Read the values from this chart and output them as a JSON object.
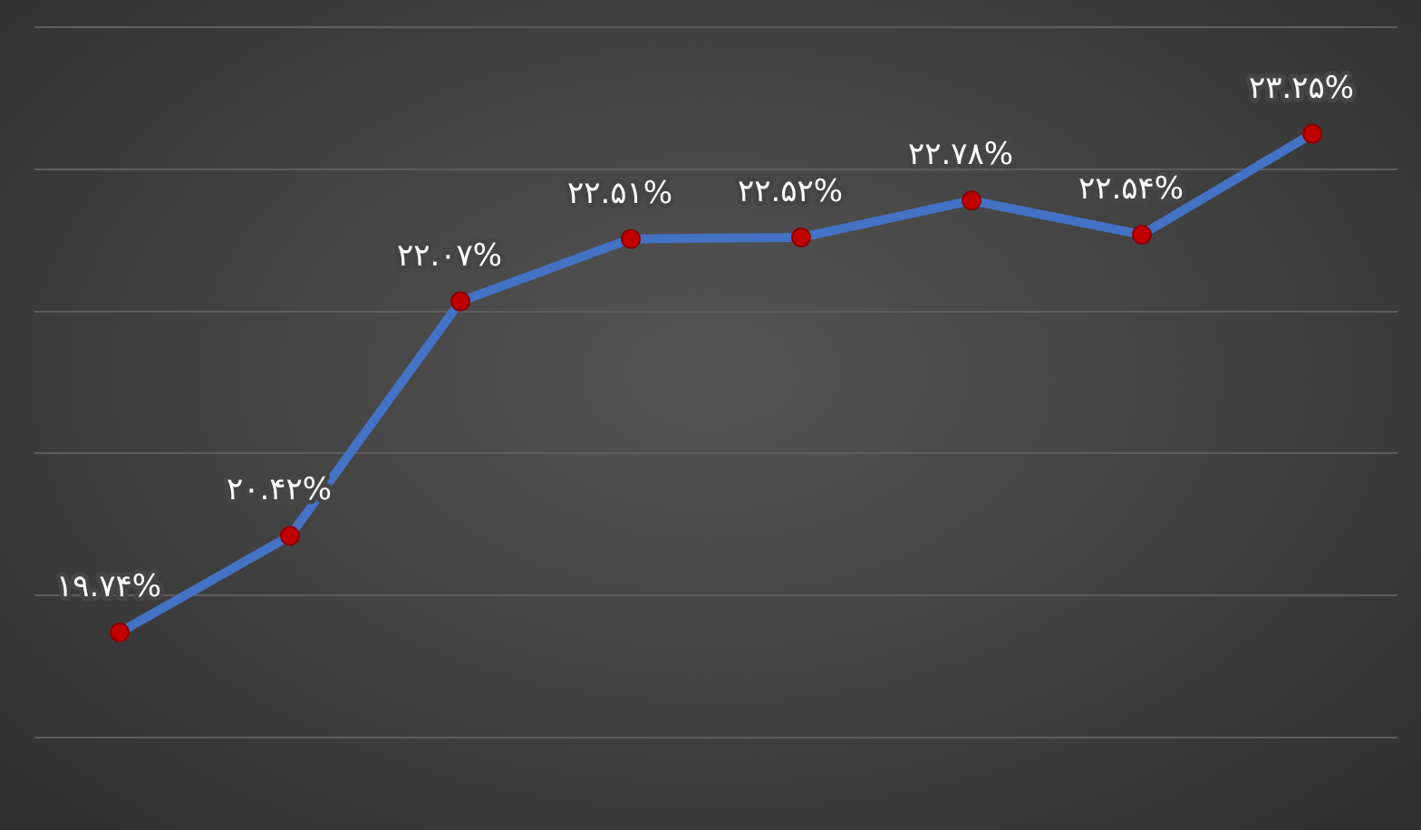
{
  "chart_data": {
    "type": "line",
    "categories": [
      null,
      null,
      null,
      null,
      null,
      null,
      null,
      null
    ],
    "series": [
      {
        "color": "#4472c4",
        "values": [
          19.74,
          20.42,
          22.07,
          22.51,
          22.52,
          22.78,
          22.54,
          23.25
        ],
        "value_labels": [
          "۱۹.۷۴%",
          "۲۰.۴۲%",
          "۲۲.۰۷%",
          "۲۲.۵۱%",
          "۲۲.۵۲%",
          "۲۲.۷۸%",
          "۲۲.۵۴%",
          "۲۳.۲۵%"
        ]
      }
    ],
    "ylim": [
      19,
      24
    ],
    "yticks": [
      {
        "value": 19,
        "label": null
      },
      {
        "value": 20,
        "label": null
      },
      {
        "value": 21,
        "label": null
      },
      {
        "value": 22,
        "label": null
      },
      {
        "value": 23,
        "label": null
      },
      {
        "value": 24,
        "label": null
      }
    ],
    "grid": "y",
    "tick_labels": false,
    "marker": "circle",
    "line_style": "solid",
    "legend": false
  }
}
